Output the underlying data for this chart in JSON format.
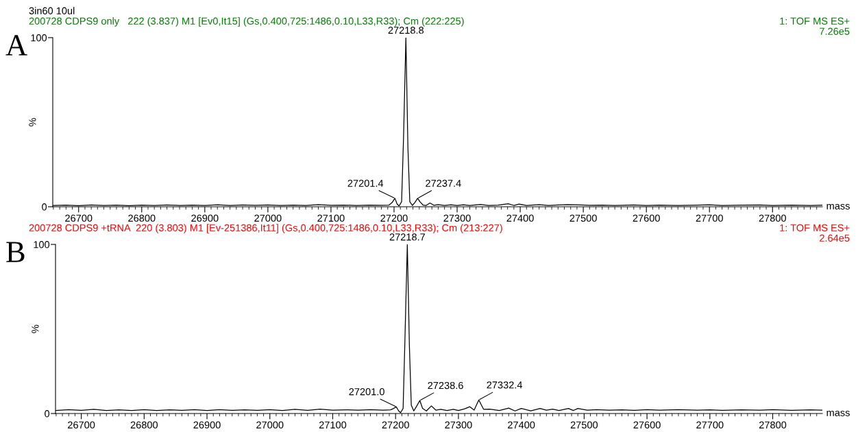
{
  "chart_data": [
    {
      "type": "line",
      "title": "200728 CDPS9 only   222 (3.837) M1 [Ev0,It15] (Gs,0.400,725:1486,0.10,L33,R33); Cm (222:225)",
      "xlabel": "mass",
      "ylabel": "%",
      "xlim": [
        26659,
        27879
      ],
      "xticks": [
        26700,
        26800,
        26900,
        27000,
        27100,
        27200,
        27300,
        27400,
        27500,
        27600,
        27700,
        27800
      ],
      "ylim": [
        0,
        100
      ],
      "yticks": [
        0,
        100
      ],
      "grid": false,
      "legend": false,
      "marker": "none",
      "line_style": "solid",
      "series": [
        {
          "color": "#000000",
          "x": [
            26659,
            26680,
            26700,
            26720,
            26740,
            26760,
            26780,
            26800,
            26820,
            26840,
            26860,
            26880,
            26900,
            26920,
            26940,
            26960,
            26980,
            27000,
            27020,
            27040,
            27060,
            27080,
            27100,
            27120,
            27140,
            27160,
            27180,
            27192,
            27197,
            27201.4,
            27205,
            27208,
            27212,
            27215,
            27218.8,
            27222,
            27225,
            27229,
            27233,
            27237.4,
            27241,
            27246,
            27251,
            27257,
            27263,
            27270,
            27280,
            27290,
            27300,
            27310,
            27320,
            27337,
            27350,
            27365,
            27381,
            27390,
            27398,
            27410,
            27430,
            27445,
            27460,
            27475,
            27490,
            27510,
            27530,
            27550,
            27580,
            27600,
            27620,
            27650,
            27680,
            27700,
            27720,
            27750,
            27780,
            27800,
            27830,
            27860,
            27879
          ],
          "values": [
            0.8,
            1.0,
            0.7,
            1.1,
            0.8,
            1.0,
            0.7,
            1.0,
            0.8,
            1.1,
            0.8,
            1.0,
            0.8,
            1.2,
            0.8,
            1.1,
            0.9,
            1.1,
            0.8,
            1.0,
            0.8,
            1.3,
            0.9,
            1.0,
            0.8,
            1.0,
            0.9,
            1.0,
            2.5,
            5.0,
            1.5,
            0.5,
            3,
            40,
            100,
            35,
            3,
            0.8,
            2.5,
            5.0,
            3,
            1,
            0.8,
            2.2,
            0.9,
            1.3,
            0.8,
            1.2,
            0.8,
            1.2,
            0.8,
            1.4,
            0.8,
            1.0,
            1.8,
            0.8,
            1.6,
            0.8,
            1.3,
            0.8,
            1.1,
            1.3,
            1.2,
            0.9,
            1.0,
            0.8,
            1.1,
            0.8,
            1.0,
            0.8,
            1.0,
            1.2,
            0.8,
            1.0,
            1.1,
            0.8,
            1.0,
            0.8,
            1.0
          ]
        }
      ],
      "annotations": [
        "3in60 10ul",
        "A",
        "1: TOF MS ES+",
        "7.26e5",
        {
          "text": "27201.4",
          "x": 27201.4,
          "y": 5.0
        },
        {
          "text": "27218.8",
          "x": 27218.8,
          "y": 100
        },
        {
          "text": "27237.4",
          "x": 27237.4,
          "y": 5.0
        }
      ]
    },
    {
      "type": "line",
      "title": "200728 CDPS9 +tRNA  220 (3.803) M1 [Ev-251386,It11] (Gs,0.400,725:1486,0.10,L33,R33); Cm (213:227)",
      "xlabel": "mass",
      "ylabel": "%",
      "xlim": [
        26659,
        27879
      ],
      "xticks": [
        26700,
        26800,
        26900,
        27000,
        27100,
        27200,
        27300,
        27400,
        27500,
        27600,
        27700,
        27800
      ],
      "ylim": [
        0,
        100
      ],
      "yticks": [
        0,
        100
      ],
      "grid": false,
      "legend": false,
      "marker": "none",
      "line_style": "solid",
      "series": [
        {
          "color": "#000000",
          "x": [
            26659,
            26680,
            26700,
            26720,
            26740,
            26760,
            26780,
            26800,
            26820,
            26840,
            26860,
            26880,
            26900,
            26920,
            26940,
            26960,
            26980,
            27000,
            27020,
            27040,
            27060,
            27080,
            27100,
            27120,
            27140,
            27160,
            27180,
            27192,
            27197,
            27201.0,
            27205,
            27208,
            27212,
            27215,
            27218.7,
            27222,
            27225,
            27229,
            27233,
            27238.6,
            27243,
            27249,
            27257,
            27264,
            27272,
            27282,
            27292,
            27300,
            27310,
            27318,
            27325,
            27332.4,
            27340,
            27350,
            27365,
            27380,
            27390,
            27400,
            27415,
            27430,
            27440,
            27450,
            27460,
            27475,
            27483,
            27490,
            27505,
            27520,
            27540,
            27560,
            27580,
            27600,
            27620,
            27650,
            27680,
            27700,
            27720,
            27750,
            27780,
            27800,
            27830,
            27860,
            27879
          ],
          "values": [
            1.8,
            2.3,
            1.9,
            2.5,
            1.8,
            2.2,
            1.8,
            2.3,
            1.8,
            2.2,
            1.9,
            2.3,
            1.8,
            2.3,
            1.9,
            2.2,
            1.9,
            2.3,
            1.8,
            2.5,
            1.9,
            2.6,
            2.0,
            2.2,
            2.0,
            2.3,
            2.0,
            2.2,
            3.0,
            4.0,
            1.5,
            0.5,
            3,
            45,
            100,
            40,
            5,
            1.5,
            4,
            7.7,
            3,
            1.5,
            4.5,
            2,
            2.5,
            1.8,
            2.5,
            1.8,
            2.8,
            4.0,
            2,
            8,
            2.5,
            2.6,
            1.8,
            3.2,
            1.5,
            3.0,
            1.6,
            3.0,
            2.0,
            2.6,
            1.8,
            3.0,
            1.8,
            3.0,
            2.0,
            2.3,
            2.0,
            2.2,
            1.9,
            2.3,
            2.0,
            2.3,
            2.0,
            2.2,
            1.9,
            2.2,
            2.0,
            2.3,
            1.9,
            2.2,
            2.0
          ]
        }
      ],
      "annotations": [
        "B",
        "1: TOF MS ES+",
        "2.64e5",
        {
          "text": "27201.0",
          "x": 27201.0,
          "y": 4.0
        },
        {
          "text": "27218.7",
          "x": 27218.7,
          "y": 100
        },
        {
          "text": "27238.6",
          "x": 27238.6,
          "y": 7.7
        },
        {
          "text": "27332.4",
          "x": 27332.4,
          "y": 8
        }
      ]
    }
  ]
}
